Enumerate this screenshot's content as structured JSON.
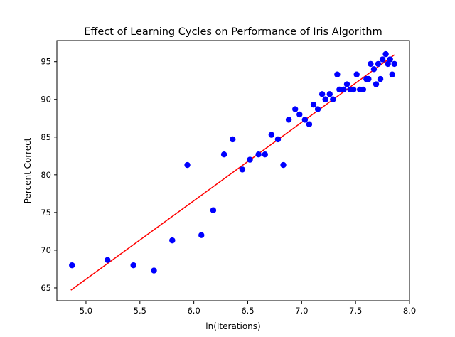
{
  "chart_data": {
    "type": "scatter",
    "title": "Effect of Learning Cycles on Performance of Iris  Algorithm",
    "xlabel": "ln(Iterations)",
    "ylabel": "Percent Correct",
    "xlim": [
      4.73,
      8.0
    ],
    "ylim": [
      63.3,
      97.8
    ],
    "xticks": [
      5.0,
      5.5,
      6.0,
      6.5,
      7.0,
      7.5,
      8.0
    ],
    "yticks": [
      65,
      70,
      75,
      80,
      85,
      90,
      95
    ],
    "xtick_labels": [
      "5.0",
      "5.5",
      "6.0",
      "6.5",
      "7.0",
      "7.5",
      "8.0"
    ],
    "ytick_labels": [
      "65",
      "70",
      "75",
      "80",
      "85",
      "90",
      "95"
    ],
    "grid": false,
    "series": [
      {
        "kind": "scatter",
        "color": "#0000ff",
        "points": [
          [
            4.87,
            68.0
          ],
          [
            5.2,
            68.7
          ],
          [
            5.44,
            68.0
          ],
          [
            5.63,
            67.3
          ],
          [
            5.8,
            71.3
          ],
          [
            5.94,
            81.3
          ],
          [
            6.07,
            72.0
          ],
          [
            6.18,
            75.3
          ],
          [
            6.28,
            82.7
          ],
          [
            6.36,
            84.7
          ],
          [
            6.45,
            80.7
          ],
          [
            6.52,
            82.0
          ],
          [
            6.6,
            82.7
          ],
          [
            6.66,
            82.7
          ],
          [
            6.72,
            85.3
          ],
          [
            6.78,
            84.7
          ],
          [
            6.83,
            81.3
          ],
          [
            6.88,
            87.3
          ],
          [
            6.94,
            88.7
          ],
          [
            6.98,
            88.0
          ],
          [
            7.03,
            87.3
          ],
          [
            7.07,
            86.7
          ],
          [
            7.11,
            89.3
          ],
          [
            7.15,
            88.7
          ],
          [
            7.19,
            90.7
          ],
          [
            7.22,
            90.0
          ],
          [
            7.26,
            90.7
          ],
          [
            7.29,
            90.0
          ],
          [
            7.33,
            93.3
          ],
          [
            7.35,
            91.3
          ],
          [
            7.39,
            91.3
          ],
          [
            7.42,
            92.0
          ],
          [
            7.45,
            91.3
          ],
          [
            7.48,
            91.3
          ],
          [
            7.51,
            93.3
          ],
          [
            7.54,
            91.3
          ],
          [
            7.57,
            91.3
          ],
          [
            7.6,
            92.7
          ],
          [
            7.62,
            92.7
          ],
          [
            7.64,
            94.7
          ],
          [
            7.67,
            94.0
          ],
          [
            7.69,
            92.0
          ],
          [
            7.71,
            94.7
          ],
          [
            7.73,
            92.7
          ],
          [
            7.75,
            95.3
          ],
          [
            7.78,
            96.0
          ],
          [
            7.8,
            94.7
          ],
          [
            7.82,
            95.3
          ],
          [
            7.84,
            93.3
          ],
          [
            7.86,
            94.7
          ]
        ]
      },
      {
        "kind": "line",
        "color": "#ff0000",
        "points": [
          [
            4.86,
            64.7
          ],
          [
            7.86,
            95.9
          ]
        ]
      }
    ]
  }
}
